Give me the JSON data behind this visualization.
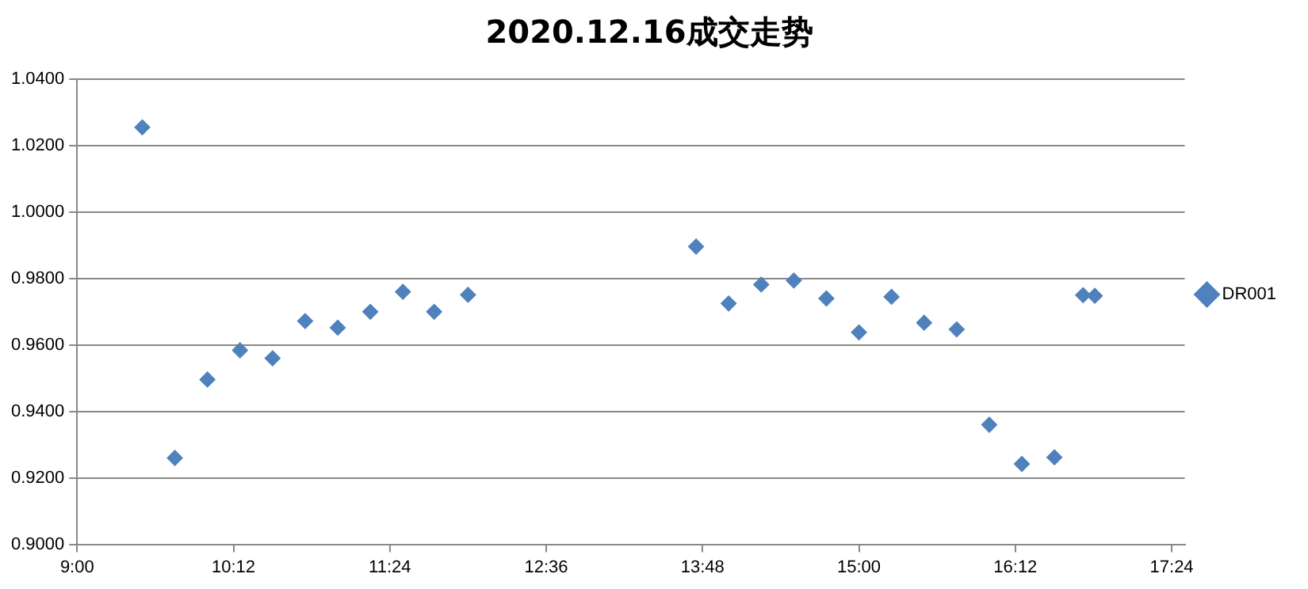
{
  "chart_data": {
    "type": "scatter",
    "title": "2020.12.16成交走势",
    "x": [
      9.5,
      9.75,
      10.0,
      10.25,
      10.5,
      10.75,
      11.0,
      11.25,
      11.5,
      11.74,
      12.0,
      13.75,
      14.0,
      14.25,
      14.5,
      14.75,
      15.0,
      15.25,
      15.5,
      15.75,
      16.0,
      16.25,
      16.5,
      16.72,
      16.81
    ],
    "series": [
      {
        "name": "DR001",
        "color": "#4f81bd",
        "values": [
          1.0255,
          0.926,
          0.9496,
          0.9584,
          0.956,
          0.9672,
          0.9652,
          0.97,
          0.976,
          0.97,
          0.9751,
          0.9896,
          0.9725,
          0.9782,
          0.9794,
          0.974,
          0.9638,
          0.9745,
          0.9667,
          0.9647,
          0.936,
          0.9242,
          0.9262,
          0.975,
          0.9748
        ]
      }
    ],
    "xlim": [
      9,
      17.5
    ],
    "xticks": [
      {
        "value": 9,
        "label": "9:00"
      },
      {
        "value": 10.2,
        "label": "10:12"
      },
      {
        "value": 11.4,
        "label": "11:24"
      },
      {
        "value": 12.6,
        "label": "12:36"
      },
      {
        "value": 13.8,
        "label": "13:48"
      },
      {
        "value": 15,
        "label": "15:00"
      },
      {
        "value": 16.2,
        "label": "16:12"
      },
      {
        "value": 17.4,
        "label": "17:24"
      }
    ],
    "ylim": [
      0.9,
      1.04
    ],
    "yticks": [
      {
        "value": 0.9,
        "label": "0.9000"
      },
      {
        "value": 0.92,
        "label": "0.9200"
      },
      {
        "value": 0.94,
        "label": "0.9400"
      },
      {
        "value": 0.96,
        "label": "0.9600"
      },
      {
        "value": 0.98,
        "label": "0.9800"
      },
      {
        "value": 1.0,
        "label": "1.0000"
      },
      {
        "value": 1.02,
        "label": "1.0200"
      },
      {
        "value": 1.04,
        "label": "1.0400"
      }
    ],
    "grid": "y",
    "legend": "right",
    "marker": "diamond"
  }
}
